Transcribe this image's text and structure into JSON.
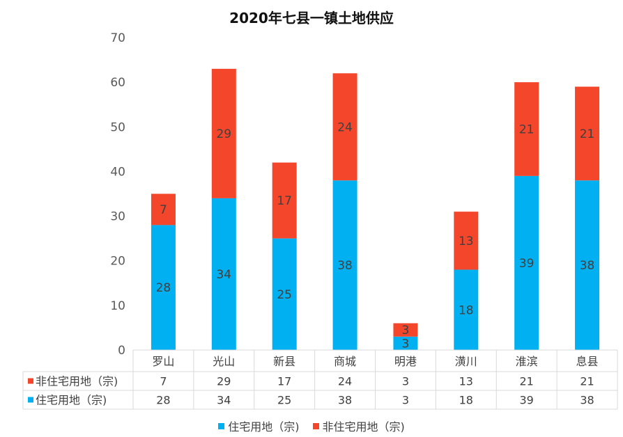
{
  "chart_data": {
    "type": "bar",
    "stacked": true,
    "title": "2020年七县一镇土地供应",
    "categories": [
      "罗山",
      "光山",
      "新县",
      "商城",
      "明港",
      "潢川",
      "淮滨",
      "息县"
    ],
    "series": [
      {
        "name": "住宅用地（宗)",
        "color": "#00B0F0",
        "values": [
          28,
          34,
          25,
          38,
          3,
          18,
          39,
          38
        ]
      },
      {
        "name": "非住宅用地（宗)",
        "color": "#F4462A",
        "values": [
          7,
          29,
          17,
          24,
          3,
          13,
          21,
          21
        ]
      }
    ],
    "ylim": [
      0,
      70
    ],
    "yticks": [
      0,
      10,
      20,
      30,
      40,
      50,
      60,
      70
    ],
    "legend_position": "bottom",
    "data_table": true,
    "grid": false
  }
}
